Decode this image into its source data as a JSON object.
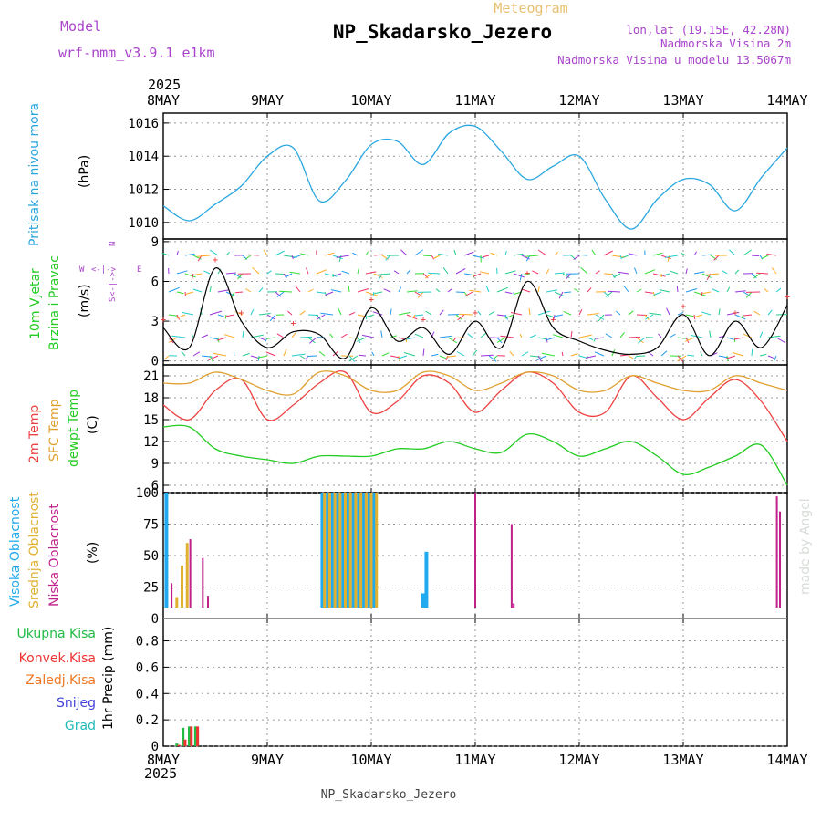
{
  "header": {
    "model_label": "Model",
    "model_name": "wrf-nmm_v3.9.1 e1km",
    "product": "Meteogram",
    "station": "NP_Skadarsko_Jezero",
    "lonlat": "lon,lat (19.15E, 42.28N)",
    "elevation": "Nadmorska Visina 2m",
    "model_elevation": "Nadmorska Visina u modelu 13.5067m"
  },
  "footer": {
    "station": "NP_Skadarsko_Jezero",
    "credit": "made by Angel"
  },
  "axis": {
    "year": "2025",
    "days": [
      "8MAY",
      "9MAY",
      "10MAY",
      "11MAY",
      "12MAY",
      "13MAY",
      "14MAY"
    ]
  },
  "panels": {
    "pressure": {
      "label": "Pritisak na nivou mora",
      "unit": "(hPa)",
      "ticks": [
        "1010",
        "1012",
        "1014",
        "1016"
      ]
    },
    "wind": {
      "label1": "10m Vjetar",
      "label2": "Brzina i Pravac",
      "unit": "(m/s)",
      "ticks": [
        "0",
        "3",
        "6",
        "9"
      ],
      "compass_north": "N",
      "compass_east": "E",
      "compass_west": "W",
      "compass_south": "S",
      "compass_arrow_up": "<-|->",
      "compass_arrow_side": "<-|->"
    },
    "temperature": {
      "label_temp": "2m Temp",
      "label_sfc": "SFC Temp",
      "label_dew": "dewpt Temp",
      "unit": "(C)",
      "ticks": [
        "6",
        "9",
        "12",
        "15",
        "18",
        "21"
      ]
    },
    "cloud": {
      "label_high": "Visoka Oblacnost",
      "label_mid": "Srednja Oblacnost",
      "label_low": "Niska Oblacnost",
      "unit": "(%)",
      "ticks": [
        "0",
        "25",
        "50",
        "75",
        "100"
      ]
    },
    "precip": {
      "legend": [
        "Ukupna Kisa",
        "Konvek.Kisa",
        "Zaledj.Kisa",
        "Snijeg",
        "Grad"
      ],
      "unit": "1hr Precip (mm)",
      "ticks": [
        "0",
        "0.2",
        "0.4",
        "0.6",
        "0.8"
      ]
    }
  },
  "colors": {
    "pressure": "#2aa7df",
    "temp2m": "#ee4040",
    "sfc_temp": "#e0a030",
    "dewpt": "#22cc22",
    "cloud_high": "#22aaee",
    "cloud_mid": "#e0b030",
    "cloud_low": "#c0208a",
    "rain_total": "#22bb44",
    "rain_conv": "#ee3333",
    "rain_freeze": "#ee7722",
    "snow": "#4444dd",
    "hail": "#22bbbb",
    "title_purple": "#aa44cc",
    "header_gold": "#e8c070"
  },
  "chart_data": [
    {
      "type": "line",
      "title": "Pritisak na nivou mora",
      "ylabel": "(hPa)",
      "xlabel": "",
      "ylim": [
        1009,
        1016.6
      ],
      "x_days": [
        0,
        0.25,
        0.5,
        0.75,
        1.0,
        1.25,
        1.5,
        1.75,
        2.0,
        2.25,
        2.5,
        2.75,
        3.0,
        3.25,
        3.5,
        3.75,
        4.0,
        4.25,
        4.5,
        4.75,
        5.0,
        5.25,
        5.5,
        5.75,
        6.0
      ],
      "series": [
        {
          "values": [
            1011.0,
            1010.1,
            1011.1,
            1012.2,
            1014.0,
            1014.5,
            1011.3,
            1012.5,
            1014.7,
            1014.9,
            1013.5,
            1015.4,
            1015.8,
            1014.3,
            1012.6,
            1013.4,
            1014.0,
            1011.4,
            1009.6,
            1011.4,
            1012.6,
            1012.3,
            1010.7,
            1012.7,
            1014.5
          ]
        }
      ]
    },
    {
      "type": "line",
      "title": "10m Vjetar Brzina i Pravac",
      "ylabel": "(m/s)",
      "ylim": [
        -0.3,
        9.2
      ],
      "x_days": [
        0,
        0.25,
        0.5,
        0.75,
        1.0,
        1.25,
        1.5,
        1.75,
        2.0,
        2.25,
        2.5,
        2.75,
        3.0,
        3.25,
        3.5,
        3.75,
        4.0,
        4.25,
        4.5,
        4.75,
        5.0,
        5.25,
        5.5,
        5.75,
        6.0
      ],
      "series": [
        {
          "values": [
            2.5,
            1.0,
            7.0,
            3.0,
            1.0,
            2.2,
            2.0,
            0.2,
            4.0,
            1.5,
            2.5,
            0.5,
            3.0,
            1.0,
            6.0,
            2.5,
            1.5,
            0.8,
            0.5,
            1.0,
            3.5,
            0.4,
            3.0,
            1.0,
            4.2
          ]
        }
      ]
    },
    {
      "type": "line",
      "title": "2m Temp / SFC Temp / dewpt Temp",
      "ylabel": "(C)",
      "ylim": [
        5,
        22.5
      ],
      "x_days": [
        0,
        0.25,
        0.5,
        0.75,
        1.0,
        1.25,
        1.5,
        1.75,
        2.0,
        2.25,
        2.5,
        2.75,
        3.0,
        3.25,
        3.5,
        3.75,
        4.0,
        4.25,
        4.5,
        4.75,
        5.0,
        5.25,
        5.5,
        5.75,
        6.0
      ],
      "series": [
        {
          "name": "2m Temp",
          "values": [
            17,
            15,
            19,
            20.5,
            15,
            17,
            20,
            21.5,
            16,
            17.5,
            21,
            20,
            16,
            19,
            21.5,
            20,
            16,
            16,
            21,
            18,
            15,
            18,
            20.5,
            17.5,
            12
          ]
        },
        {
          "name": "SFC Temp",
          "values": [
            20,
            20,
            21.5,
            20.5,
            19,
            18.5,
            21.5,
            21,
            19,
            19,
            21.5,
            21,
            19,
            20,
            21.5,
            21,
            19,
            19,
            21,
            20,
            19,
            19,
            21,
            20,
            19
          ]
        },
        {
          "name": "dewpt Temp",
          "values": [
            14,
            14,
            11,
            10,
            9.5,
            9,
            10,
            10,
            10,
            11,
            11,
            12,
            11,
            10.5,
            13,
            12,
            10,
            11,
            12,
            10,
            7.5,
            8.5,
            10,
            11.5,
            6
          ]
        }
      ]
    },
    {
      "type": "bar",
      "title": "Visoka / Srednja / Niska Oblacnost",
      "ylabel": "(%)",
      "ylim": [
        0,
        100
      ],
      "series": [
        {
          "name": "Visoka Oblacnost",
          "x_days": [
            0.03,
            1.53,
            1.58,
            1.63,
            1.68,
            1.73,
            1.78,
            1.83,
            1.88,
            1.93,
            1.98,
            2.03,
            2.46,
            2.5,
            2.53
          ],
          "values": [
            100,
            100,
            100,
            100,
            100,
            100,
            100,
            100,
            100,
            100,
            100,
            100,
            5,
            20,
            53
          ]
        },
        {
          "name": "Srednja Oblacnost",
          "x_days": [
            0.13,
            0.18,
            0.23,
            1.55,
            1.6,
            1.65,
            1.7,
            1.75,
            1.8,
            1.85,
            1.9,
            1.95,
            2.0,
            2.05
          ],
          "values": [
            17,
            42,
            60,
            100,
            100,
            100,
            100,
            100,
            100,
            100,
            100,
            100,
            100,
            100
          ]
        },
        {
          "name": "Niska Oblacnost",
          "x_days": [
            0.08,
            0.26,
            0.38,
            0.43,
            0.53,
            3.0,
            3.35,
            3.37,
            5.9,
            5.93
          ],
          "values": [
            28,
            63,
            48,
            18,
            8,
            100,
            75,
            12,
            97,
            85
          ]
        }
      ]
    },
    {
      "type": "bar",
      "title": "1hr Precip",
      "ylabel": "1hr Precip (mm)",
      "ylim": [
        0,
        0.97
      ],
      "series": [
        {
          "name": "Ukupna Kisa",
          "x_days": [
            0.13,
            0.19,
            0.25,
            0.31
          ],
          "values": [
            0.02,
            0.14,
            0.15,
            0.15
          ]
        },
        {
          "name": "Konvek.Kisa",
          "x_days": [
            0.15,
            0.21,
            0.27,
            0.33
          ],
          "values": [
            0.01,
            0.05,
            0.15,
            0.15
          ]
        }
      ]
    }
  ]
}
